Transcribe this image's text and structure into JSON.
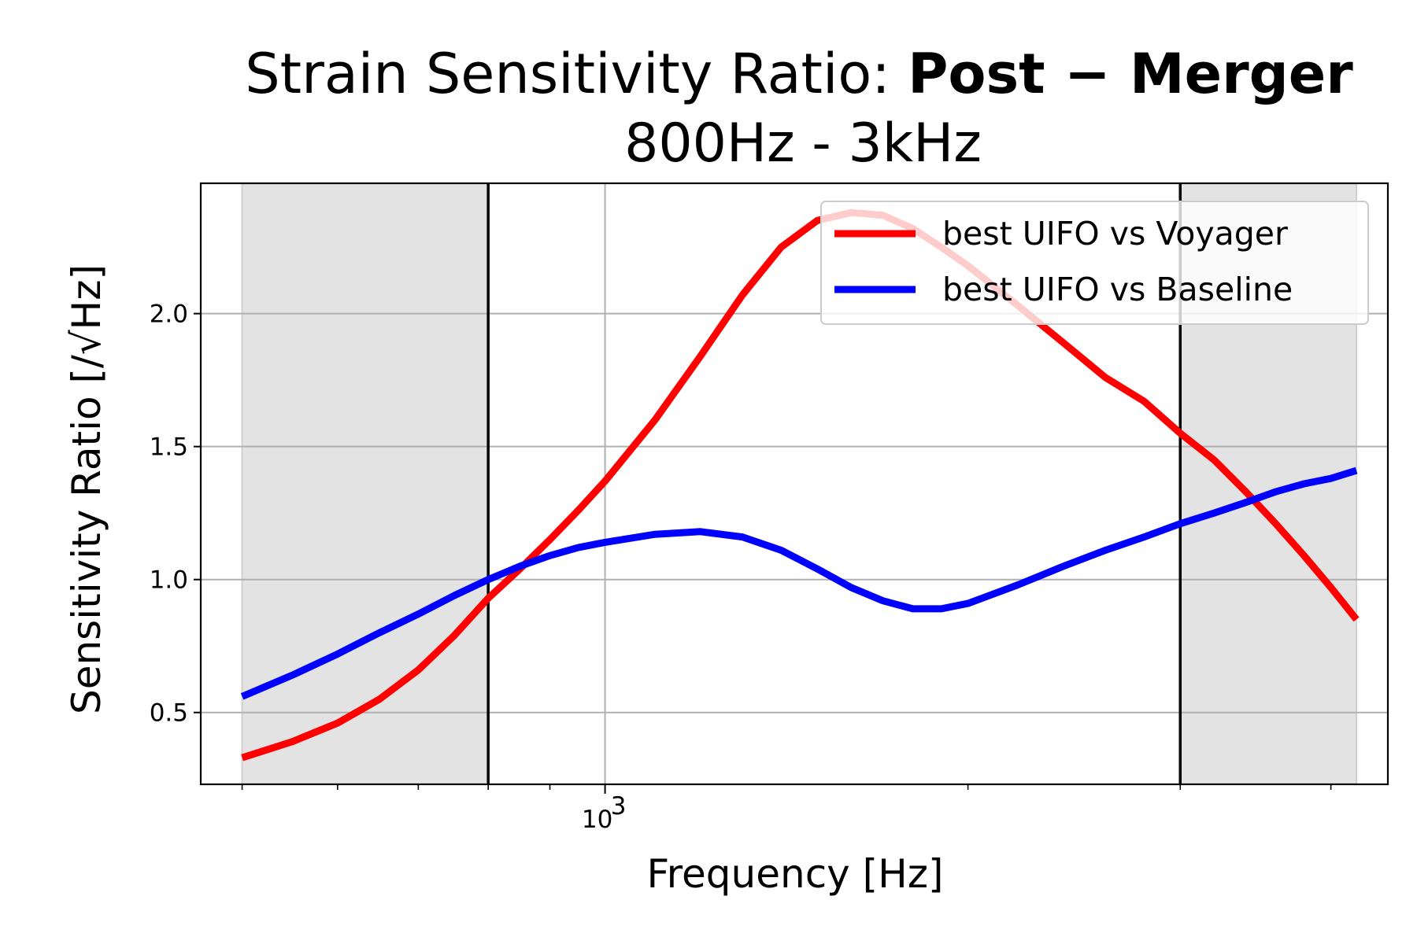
{
  "chart_data": {
    "type": "line",
    "title": "Strain Sensitivity Ratio: ",
    "title_bold": "Post − Merger",
    "subtitle": "800Hz - 3kHz",
    "xlabel": "Frequency [Hz]",
    "ylabel": "Sensitivity Ratio [/√Hz]",
    "x_scale": "log",
    "xlim": [
      462,
      4460
    ],
    "ylim": [
      0.23,
      2.49
    ],
    "x_ticks": [
      {
        "value": 1000,
        "label": "10",
        "exponent": "3"
      }
    ],
    "y_ticks": [
      0.5,
      1.0,
      1.5,
      2.0
    ],
    "grid": true,
    "legend_position": "top-right",
    "shaded_regions": [
      [
        500,
        800
      ],
      [
        3000,
        4200
      ]
    ],
    "vlines": [
      800,
      3000
    ],
    "series": [
      {
        "name": "best UIFO vs Voyager",
        "color": "#ff0000",
        "x": [
          500,
          550,
          600,
          650,
          700,
          750,
          800,
          850,
          900,
          950,
          1000,
          1100,
          1200,
          1300,
          1400,
          1500,
          1600,
          1700,
          1800,
          1900,
          2000,
          2200,
          2400,
          2600,
          2800,
          3000,
          3200,
          3400,
          3600,
          3800,
          4000,
          4200
        ],
        "values": [
          0.33,
          0.39,
          0.46,
          0.55,
          0.66,
          0.79,
          0.93,
          1.04,
          1.15,
          1.26,
          1.37,
          1.6,
          1.84,
          2.07,
          2.25,
          2.35,
          2.38,
          2.37,
          2.32,
          2.25,
          2.18,
          2.03,
          1.89,
          1.76,
          1.67,
          1.55,
          1.45,
          1.33,
          1.21,
          1.09,
          0.97,
          0.85
        ]
      },
      {
        "name": "best UIFO vs Baseline",
        "color": "#0000ff",
        "x": [
          500,
          550,
          600,
          650,
          700,
          750,
          800,
          850,
          900,
          950,
          1000,
          1100,
          1200,
          1300,
          1400,
          1500,
          1600,
          1700,
          1800,
          1900,
          2000,
          2200,
          2400,
          2600,
          2800,
          3000,
          3200,
          3400,
          3600,
          3800,
          4000,
          4200
        ],
        "values": [
          0.56,
          0.64,
          0.72,
          0.8,
          0.87,
          0.94,
          1.0,
          1.05,
          1.09,
          1.12,
          1.14,
          1.17,
          1.18,
          1.16,
          1.11,
          1.04,
          0.97,
          0.92,
          0.89,
          0.89,
          0.91,
          0.98,
          1.05,
          1.11,
          1.16,
          1.21,
          1.25,
          1.29,
          1.33,
          1.36,
          1.38,
          1.41
        ]
      }
    ]
  }
}
